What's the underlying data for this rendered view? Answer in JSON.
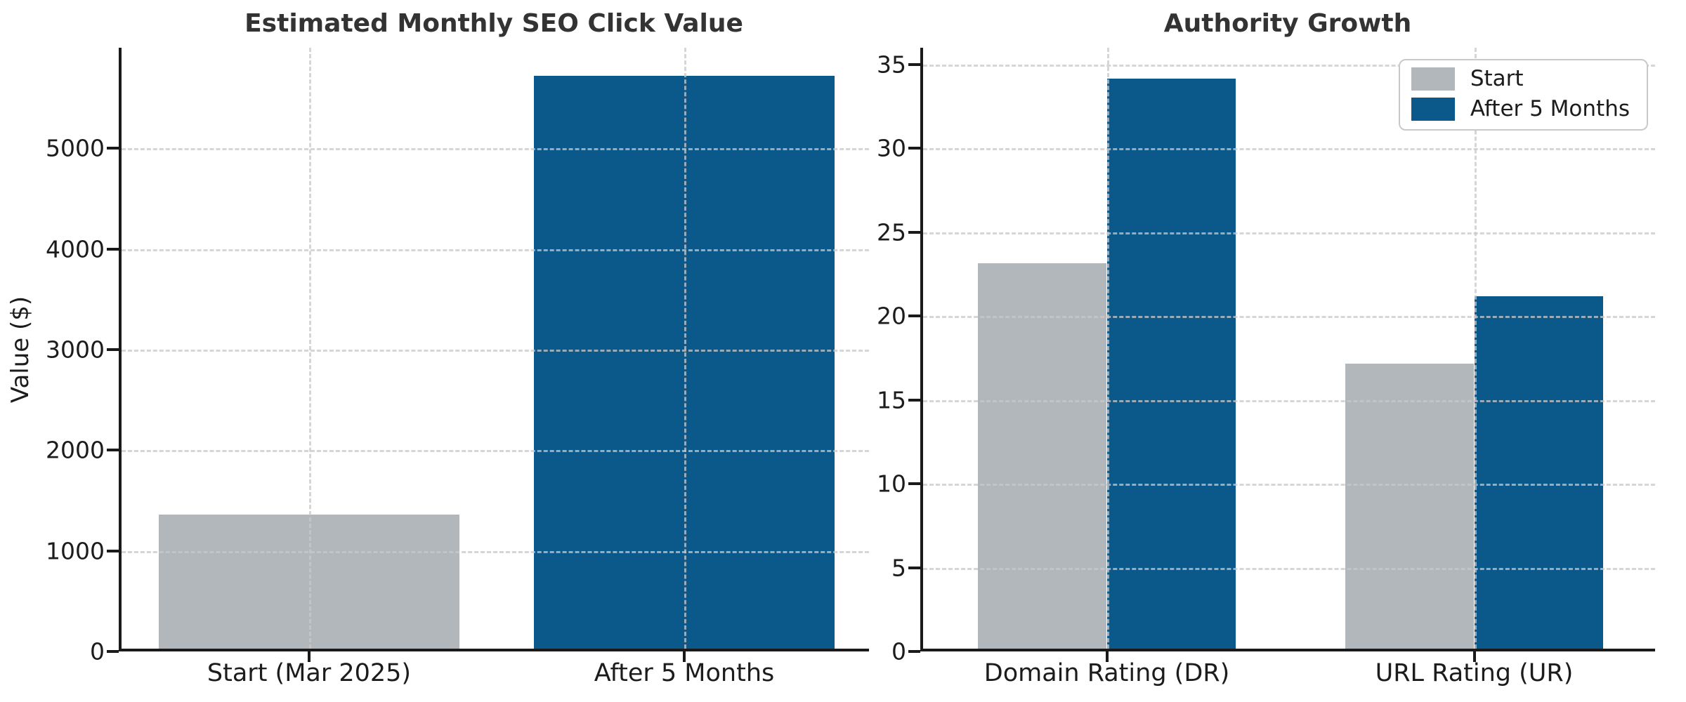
{
  "figure": {
    "background": "#ffffff"
  },
  "colors": {
    "bar_start": "#b2b7bb",
    "bar_after": "#0b588a",
    "title_text": "#333333",
    "tick_text": "#1c1c1c",
    "axis_spine": "#1a1a1a",
    "gridline": "#c9c9c9",
    "legend_border": "#c9c9c9",
    "legend_background": "#ffffff"
  },
  "chart_data": [
    {
      "type": "bar",
      "title": "Estimated Monthly SEO Click Value",
      "xlabel": "",
      "ylabel": "Value ($)",
      "categories": [
        "Start (Mar 2025)",
        "After 5 Months"
      ],
      "bars": [
        {
          "category": "Start (Mar 2025)",
          "series": "Start",
          "value": 1330,
          "color_key": "start"
        },
        {
          "category": "After 5 Months",
          "series": "After 5 Months",
          "value": 5690,
          "color_key": "after"
        }
      ],
      "yticks": [
        0,
        1000,
        2000,
        3000,
        4000,
        5000
      ],
      "ylim": [
        0,
        6000
      ],
      "grid": "dashed-horizontal-and-vertical",
      "legend": null
    },
    {
      "type": "bar",
      "title": "Authority Growth",
      "xlabel": "",
      "ylabel": "",
      "categories": [
        "Domain Rating (DR)",
        "URL Rating (UR)"
      ],
      "series": [
        {
          "name": "Start",
          "color_key": "start",
          "values": [
            23,
            17
          ]
        },
        {
          "name": "After 5 Months",
          "color_key": "after",
          "values": [
            34,
            21
          ]
        }
      ],
      "yticks": [
        0,
        5,
        10,
        15,
        20,
        25,
        30,
        35
      ],
      "ylim": [
        0,
        36
      ],
      "grid": "dashed-horizontal-and-vertical",
      "legend": {
        "position": "upper right",
        "labels": [
          "Start",
          "After 5 Months"
        ]
      }
    }
  ]
}
